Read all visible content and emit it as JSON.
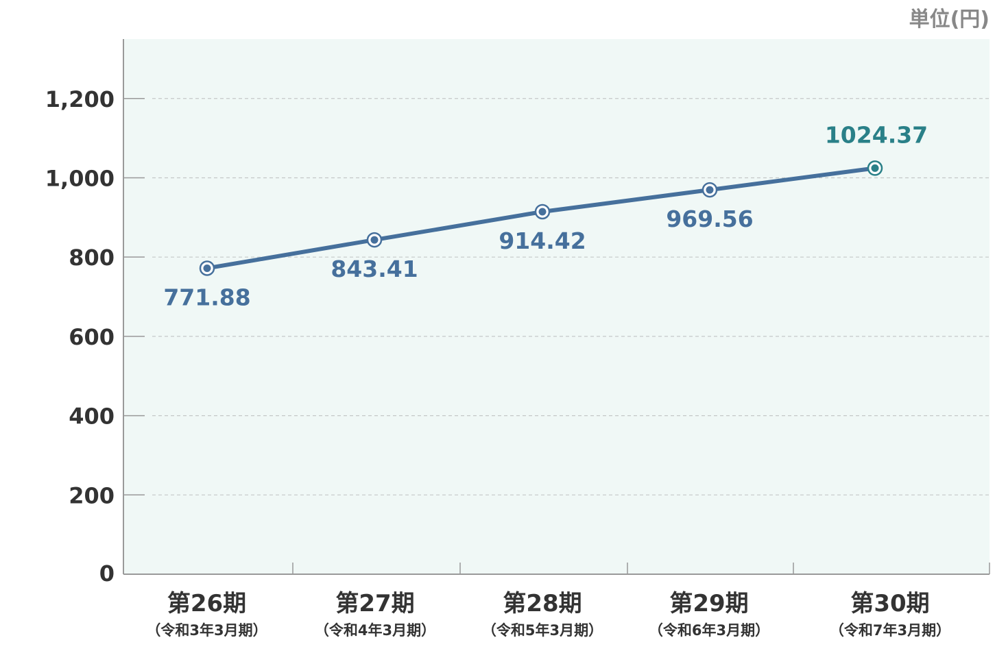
{
  "chart_data": {
    "type": "line",
    "unit_label": "単位(円)",
    "categories": [
      "第26期",
      "第27期",
      "第28期",
      "第29期",
      "第30期"
    ],
    "sub_categories": [
      "（令和3年3月期）",
      "（令和4年3月期）",
      "（令和5年3月期）",
      "（令和6年3月期）",
      "（令和7年3月期）"
    ],
    "values": [
      771.88,
      843.41,
      914.42,
      969.56,
      1024.37
    ],
    "data_labels": [
      "771.88",
      "843.41",
      "914.42",
      "969.56",
      "1024.37"
    ],
    "ylim": [
      0,
      1350
    ],
    "yticks": [
      0,
      200,
      400,
      600,
      800,
      1000,
      1200
    ],
    "ytick_labels": [
      "0",
      "200",
      "400",
      "600",
      "800",
      "1,000",
      "1,200"
    ],
    "grid": true,
    "colors": {
      "line": "#46709c",
      "highlight": "#2a8088",
      "plot_bg": "#f0f8f6",
      "text": "#333333",
      "unit": "#888888"
    }
  }
}
